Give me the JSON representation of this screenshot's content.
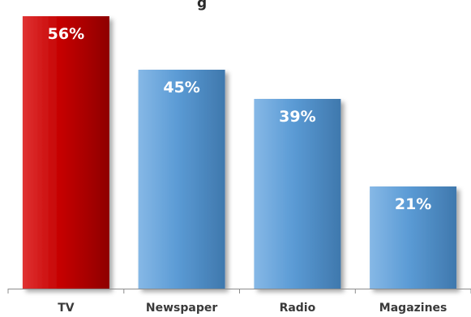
{
  "title_fragment": "g",
  "colors": {
    "highlight": "#c40000",
    "highlight_light": "#e03333",
    "highlight_dark": "#8e0000",
    "standard": "#5b9bd5",
    "standard_light": "#86b8e6",
    "standard_dark": "#3f78ad",
    "axis": "#8c8c8c",
    "label_text": "#3a3a3a"
  },
  "chart_data": {
    "type": "bar",
    "categories": [
      "TV",
      "Newspaper",
      "Radio",
      "Magazines"
    ],
    "values": [
      56,
      45,
      39,
      21
    ],
    "value_labels": [
      "56%",
      "45%",
      "39%",
      "21%"
    ],
    "highlighted": [
      true,
      false,
      false,
      false
    ],
    "ylim": [
      0,
      58
    ],
    "grid": false,
    "legend": "none",
    "xlabel": "",
    "ylabel": ""
  }
}
